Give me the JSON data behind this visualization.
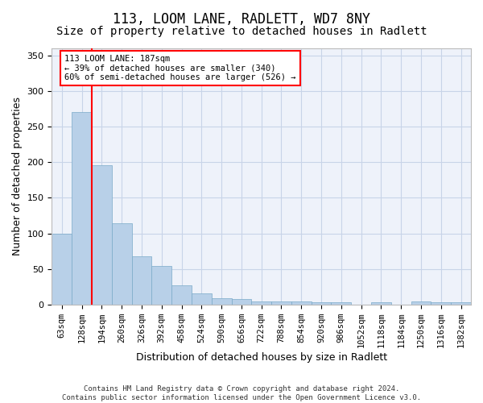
{
  "title_line1": "113, LOOM LANE, RADLETT, WD7 8NY",
  "title_line2": "Size of property relative to detached houses in Radlett",
  "xlabel": "Distribution of detached houses by size in Radlett",
  "ylabel": "Number of detached properties",
  "background_color": "#eef2fa",
  "bar_color": "#b8d0e8",
  "bar_edge_color": "#7aaac8",
  "categories": [
    "63sqm",
    "128sqm",
    "194sqm",
    "260sqm",
    "326sqm",
    "392sqm",
    "458sqm",
    "524sqm",
    "590sqm",
    "656sqm",
    "722sqm",
    "788sqm",
    "854sqm",
    "920sqm",
    "986sqm",
    "1052sqm",
    "1118sqm",
    "1184sqm",
    "1250sqm",
    "1316sqm",
    "1382sqm"
  ],
  "values": [
    100,
    271,
    196,
    114,
    68,
    54,
    27,
    16,
    9,
    8,
    5,
    5,
    5,
    3,
    3,
    0,
    3,
    0,
    5,
    3,
    3
  ],
  "ylim": [
    0,
    360
  ],
  "yticks": [
    0,
    50,
    100,
    150,
    200,
    250,
    300,
    350
  ],
  "red_line_x": 1.5,
  "annotation_line1": "113 LOOM LANE: 187sqm",
  "annotation_line2": "← 39% of detached houses are smaller (340)",
  "annotation_line3": "60% of semi-detached houses are larger (526) →",
  "footer_line1": "Contains HM Land Registry data © Crown copyright and database right 2024.",
  "footer_line2": "Contains public sector information licensed under the Open Government Licence v3.0.",
  "grid_color": "#c8d4e8",
  "title_fontsize": 12,
  "subtitle_fontsize": 10,
  "label_fontsize": 9,
  "tick_fontsize": 7.5,
  "footer_fontsize": 6.5
}
